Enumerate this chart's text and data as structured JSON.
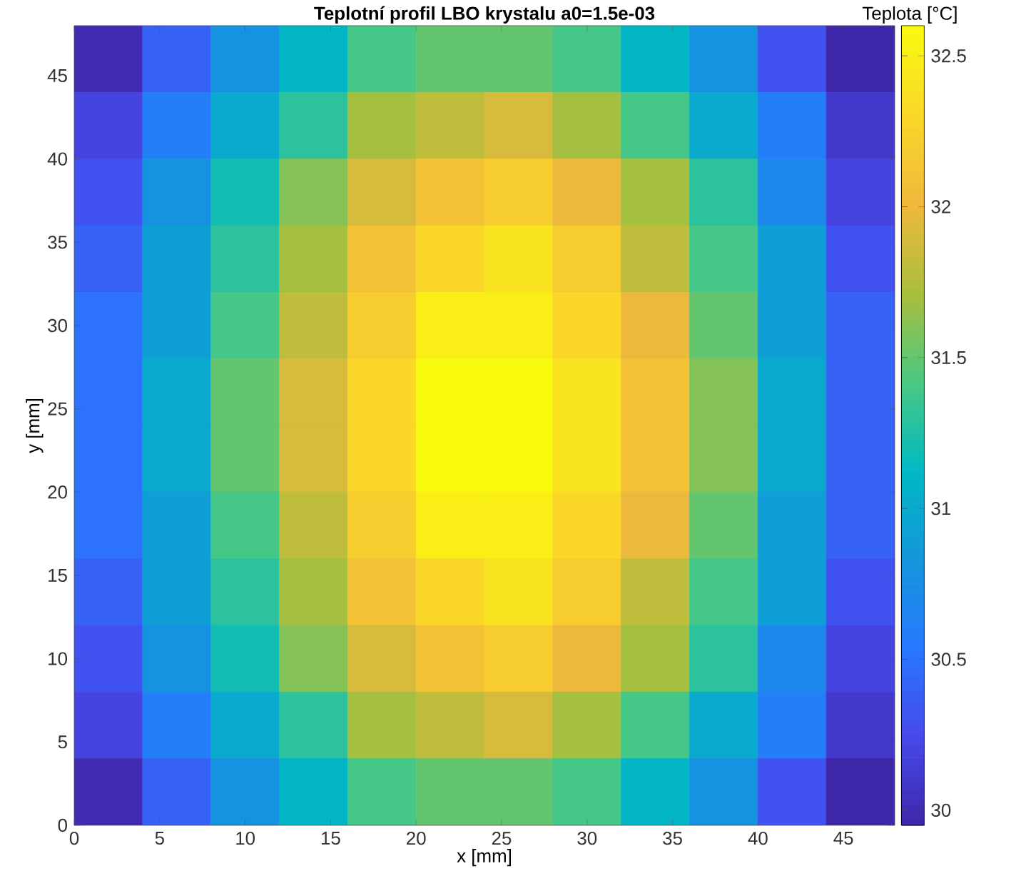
{
  "chart_data": {
    "type": "heatmap",
    "title": "Teplotní profil LBO krystalu a0=1.5e-03",
    "xlabel": "x [mm]",
    "ylabel": "y [mm]",
    "clabel": "Teplota [°C]",
    "cells": [
      [
        30.0,
        30.4,
        30.8,
        31.1,
        31.4,
        31.5,
        31.5,
        31.4,
        31.1,
        30.8,
        30.3,
        29.9
      ],
      [
        30.2,
        30.6,
        31.0,
        31.3,
        31.7,
        31.8,
        31.9,
        31.7,
        31.4,
        31.0,
        30.6,
        30.1
      ],
      [
        30.3,
        30.8,
        31.2,
        31.6,
        31.9,
        32.1,
        32.2,
        32.0,
        31.7,
        31.3,
        30.7,
        30.2
      ],
      [
        30.4,
        30.9,
        31.3,
        31.7,
        32.1,
        32.3,
        32.4,
        32.2,
        31.8,
        31.4,
        30.9,
        30.3
      ],
      [
        30.5,
        30.9,
        31.4,
        31.8,
        32.2,
        32.5,
        32.5,
        32.3,
        32.0,
        31.5,
        30.9,
        30.4
      ],
      [
        30.5,
        31.0,
        31.5,
        31.9,
        32.3,
        32.6,
        32.6,
        32.4,
        32.1,
        31.6,
        31.0,
        30.4
      ],
      [
        30.5,
        31.0,
        31.5,
        31.9,
        32.3,
        32.6,
        32.6,
        32.4,
        32.1,
        31.6,
        31.0,
        30.4
      ],
      [
        30.5,
        30.9,
        31.4,
        31.8,
        32.2,
        32.5,
        32.5,
        32.3,
        32.0,
        31.5,
        30.9,
        30.4
      ],
      [
        30.4,
        30.9,
        31.3,
        31.7,
        32.1,
        32.3,
        32.4,
        32.2,
        31.8,
        31.4,
        30.9,
        30.3
      ],
      [
        30.3,
        30.8,
        31.2,
        31.6,
        31.9,
        32.1,
        32.2,
        32.0,
        31.7,
        31.3,
        30.7,
        30.2
      ],
      [
        30.2,
        30.6,
        31.0,
        31.3,
        31.7,
        31.8,
        31.9,
        31.7,
        31.4,
        31.0,
        30.6,
        30.1
      ],
      [
        30.0,
        30.4,
        30.8,
        31.1,
        31.4,
        31.5,
        31.5,
        31.4,
        31.1,
        30.8,
        30.3,
        29.9
      ]
    ],
    "clim": [
      29.95,
      32.6
    ],
    "cticks": [
      30,
      30.5,
      31,
      31.5,
      32,
      32.5
    ],
    "xlim": [
      0,
      48
    ],
    "ylim": [
      0,
      48
    ],
    "xticks": [
      0,
      5,
      10,
      15,
      20,
      25,
      30,
      35,
      40,
      45
    ],
    "yticks": [
      0,
      5,
      10,
      15,
      20,
      25,
      30,
      35,
      40,
      45
    ]
  }
}
